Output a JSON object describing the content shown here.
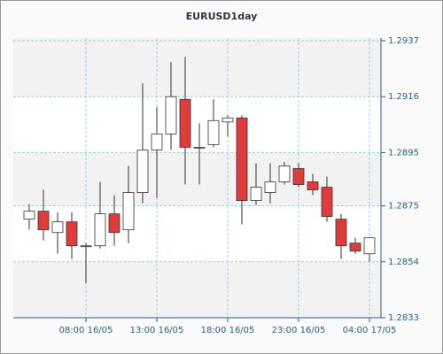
{
  "chart_data": {
    "type": "candlestick",
    "title": "EURUSD1day",
    "categories": [
      null,
      null,
      null,
      null,
      "08:00 16/05",
      null,
      null,
      null,
      null,
      "13:00 16/05",
      null,
      null,
      null,
      null,
      "18:00 16/05",
      null,
      null,
      null,
      null,
      "23:00 16/05",
      null,
      null,
      null,
      null,
      "04:00 17/05"
    ],
    "series": [
      {
        "name": "open",
        "values": [
          1.287,
          1.2873,
          1.2865,
          1.2869,
          1.286,
          1.286,
          1.2872,
          1.2866,
          1.288,
          1.2896,
          1.2902,
          1.2915,
          1.2897,
          1.2898,
          1.29065,
          1.2908,
          1.2877,
          1.288,
          1.2884,
          1.2889,
          1.2884,
          1.2882,
          1.287,
          1.2861,
          1.2857
        ]
      },
      {
        "name": "high",
        "values": [
          1.28756,
          1.2881,
          1.28726,
          1.28726,
          1.2861,
          1.2884,
          1.2879,
          1.289,
          1.2921,
          1.2912,
          1.2929,
          1.2931,
          1.2906,
          1.2915,
          1.2909,
          1.2909,
          1.2891,
          1.2891,
          1.28915,
          1.2891,
          1.2887,
          1.2886,
          1.2872,
          1.2863,
          1.2863
        ]
      },
      {
        "name": "low",
        "values": [
          1.2866,
          1.2862,
          1.2857,
          1.2855,
          1.2846,
          1.2859,
          1.286,
          1.2861,
          1.2876,
          1.2878,
          1.2896,
          1.2883,
          1.2883,
          1.2897,
          1.2901,
          1.2868,
          1.28753,
          1.2876,
          1.2883,
          1.2882,
          1.2879,
          1.2869,
          1.2855,
          1.2857,
          1.2854
        ]
      },
      {
        "name": "close",
        "values": [
          1.2873,
          1.2866,
          1.2869,
          1.286,
          1.286,
          1.2872,
          1.2865,
          1.288,
          1.2896,
          1.2902,
          1.2916,
          1.2897,
          1.2897,
          1.2907,
          1.2908,
          1.2877,
          1.2882,
          1.2884,
          1.289,
          1.2883,
          1.2881,
          1.2871,
          1.286,
          1.2858,
          1.2863
        ]
      }
    ],
    "up_color": "#ffffff",
    "down_color": "#e03c3c",
    "ylim": [
      1.2833,
      1.2938
    ],
    "yticks": [
      1.2833,
      1.2854,
      1.2875,
      1.2895,
      1.2916,
      1.2937
    ],
    "grid": true
  }
}
